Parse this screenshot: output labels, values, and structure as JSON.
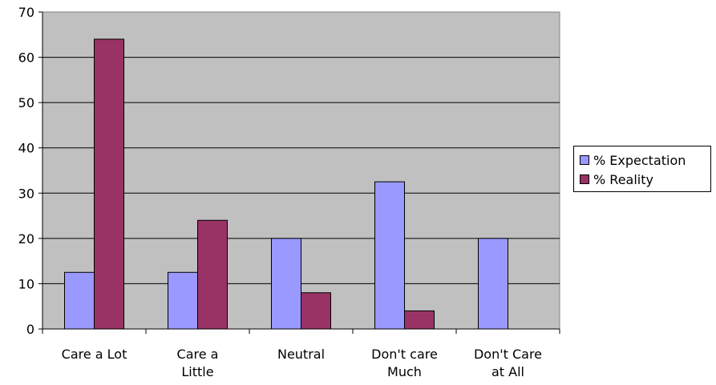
{
  "chart_data": {
    "type": "bar",
    "categories": [
      "Care a Lot",
      "Care a Little",
      "Neutral",
      "Don't care Much",
      "Don't Care at All"
    ],
    "category_lines": [
      [
        "Care a Lot"
      ],
      [
        "Care a",
        "Little"
      ],
      [
        "Neutral"
      ],
      [
        "Don't care",
        "Much"
      ],
      [
        "Don't Care",
        "at All"
      ]
    ],
    "series": [
      {
        "name": "% Expectation",
        "color": "#9999ff",
        "values": [
          12.5,
          12.5,
          20,
          32.5,
          20
        ]
      },
      {
        "name": "% Reality",
        "color": "#993366",
        "values": [
          64,
          24,
          8,
          4,
          0
        ]
      }
    ],
    "ylim": [
      0,
      70
    ],
    "yticks": [
      0,
      10,
      20,
      30,
      40,
      50,
      60,
      70
    ],
    "grid": true,
    "plot_background": "#c0c0c0",
    "legend_position": "right",
    "title": "",
    "xlabel": "",
    "ylabel": ""
  }
}
